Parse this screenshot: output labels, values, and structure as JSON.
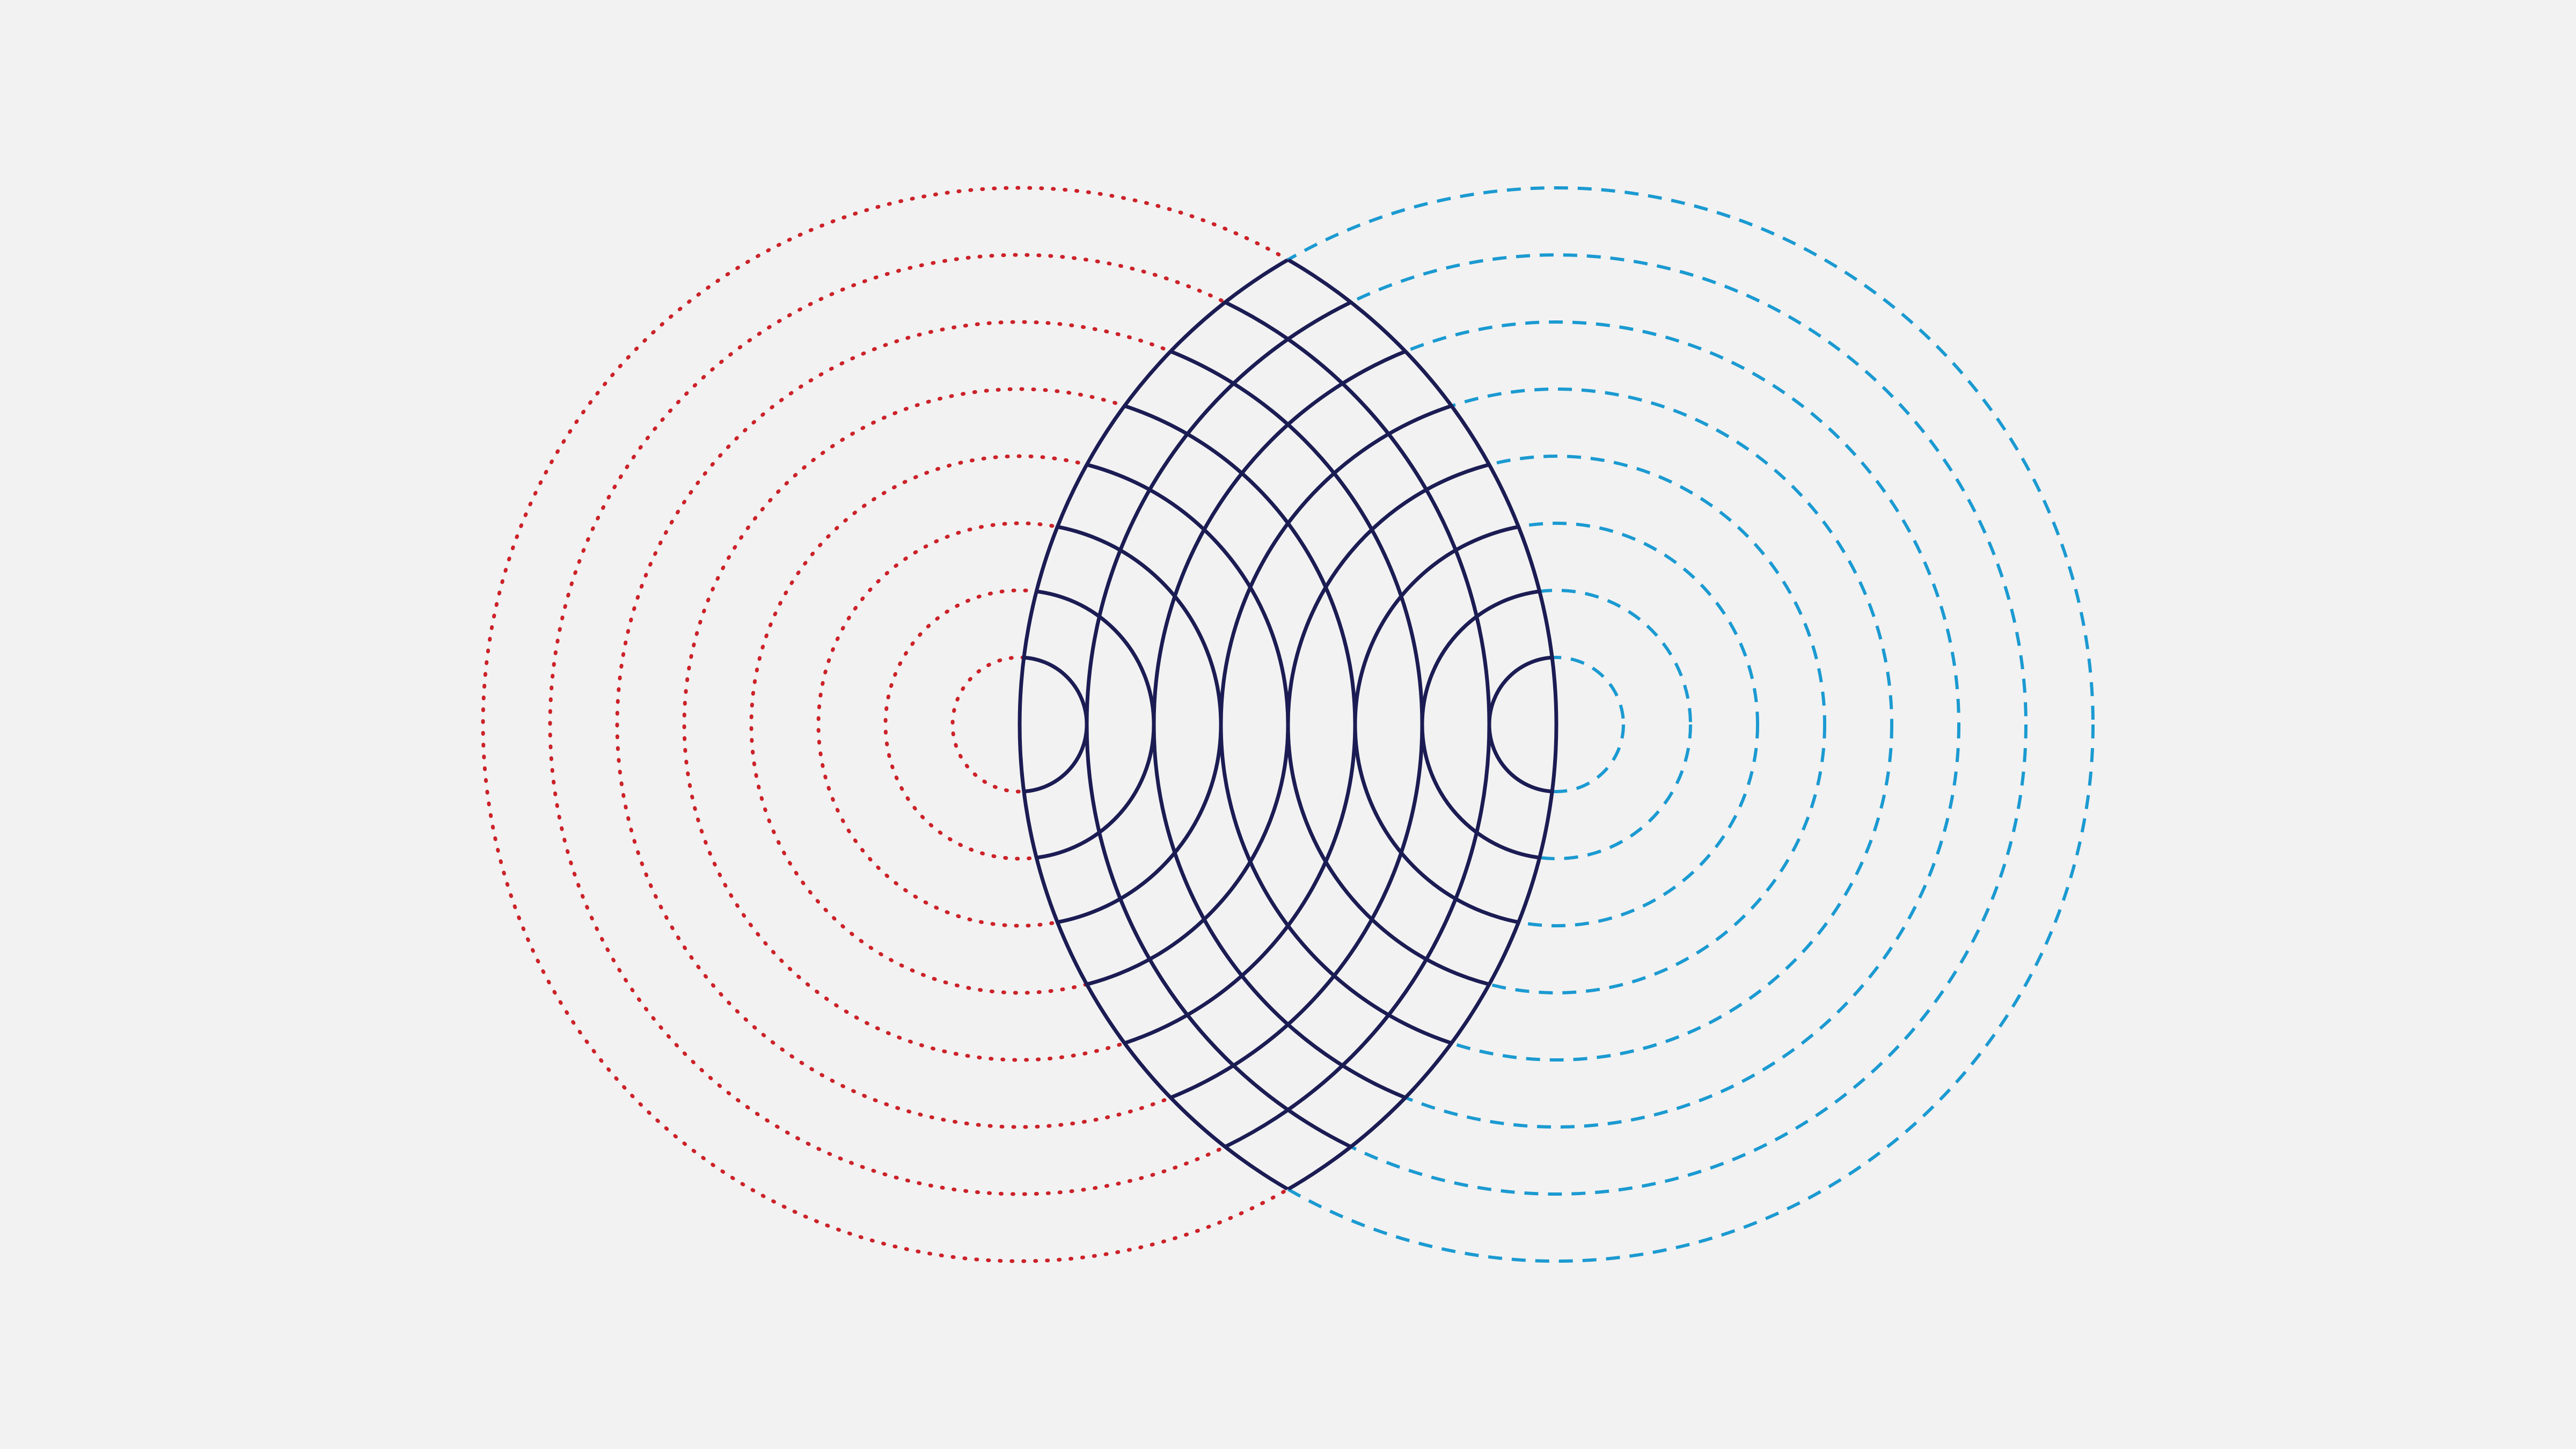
{
  "diagram": {
    "kind": "two-source circular wave interference",
    "background": "#f2f2f2",
    "ring_count_per_source": 8,
    "sources": [
      {
        "id": "left",
        "stroke_color": "#cc2229",
        "line_style": "dotted"
      },
      {
        "id": "right",
        "stroke_color": "#1b9ad1",
        "line_style": "dashed"
      }
    ],
    "overlap": {
      "stroke_color": "#1c1c54",
      "line_style": "solid"
    }
  }
}
